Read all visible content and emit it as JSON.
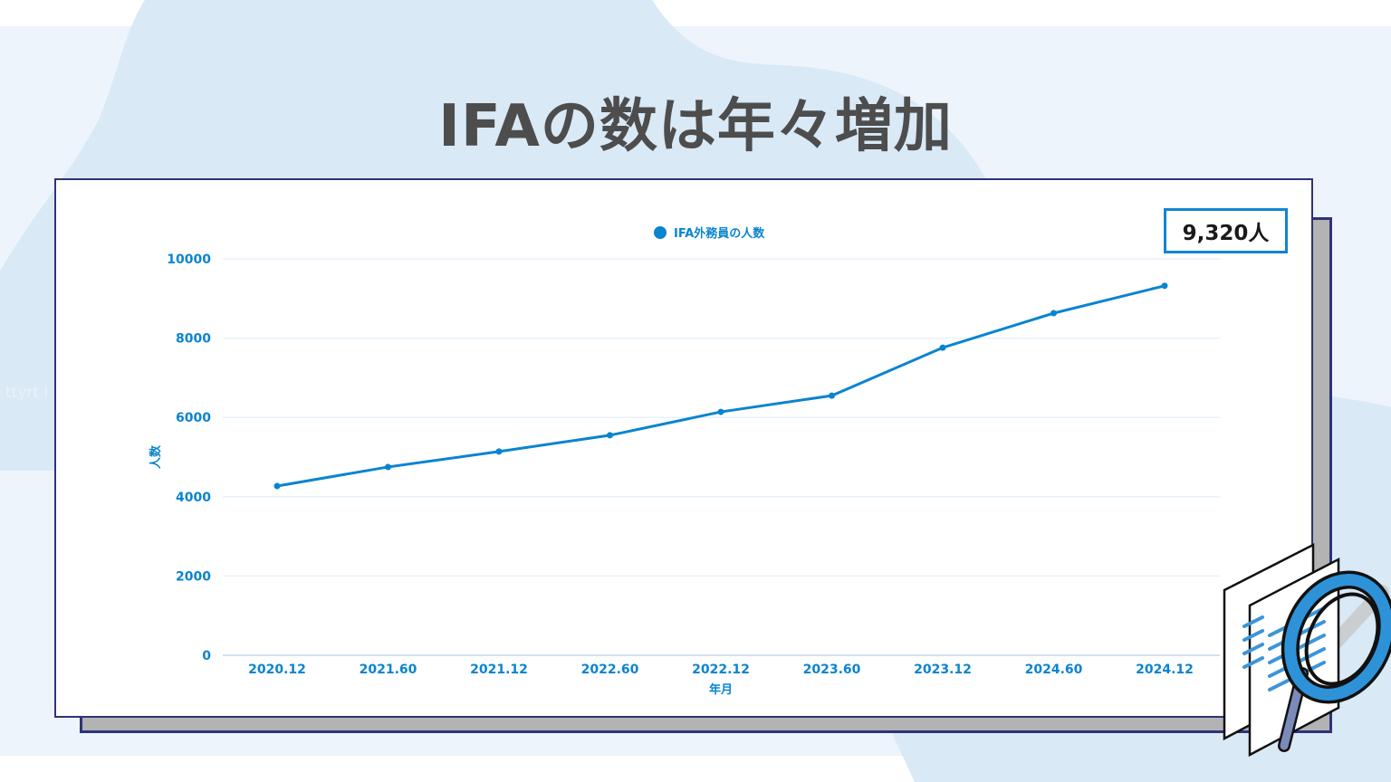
{
  "page": {
    "title": "IFAの数は年々増加",
    "watermark": "ttyrt l"
  },
  "callout": {
    "label": "9,320人"
  },
  "colors": {
    "accent": "#0a84d0",
    "title": "#4d4d4d",
    "frame": "#2e3476",
    "shadow": "#b3b3b3",
    "background_band": "#eef4fb",
    "blob": "#d9e9f6"
  },
  "chart_data": {
    "type": "line",
    "title": "",
    "legend": [
      "IFA外務員の人数"
    ],
    "legend_position": "top",
    "xlabel": "年月",
    "ylabel": "人数",
    "categories": [
      "2020.12",
      "2021.60",
      "2021.12",
      "2022.60",
      "2022.12",
      "2023.60",
      "2023.12",
      "2024.60",
      "2024.12"
    ],
    "series": [
      {
        "name": "IFA外務員の人数",
        "values": [
          4270,
          4750,
          5140,
          5550,
          6140,
          6550,
          7760,
          8630,
          9320
        ]
      }
    ],
    "yticks": [
      "0",
      "2000",
      "4000",
      "6000",
      "8000",
      "10000"
    ],
    "ylim": [
      0,
      10000
    ],
    "grid": true,
    "annotations": [
      {
        "x": "2024.12",
        "text": "9,320人"
      }
    ]
  },
  "illustration": {
    "icon": "document-magnifier-icon"
  }
}
